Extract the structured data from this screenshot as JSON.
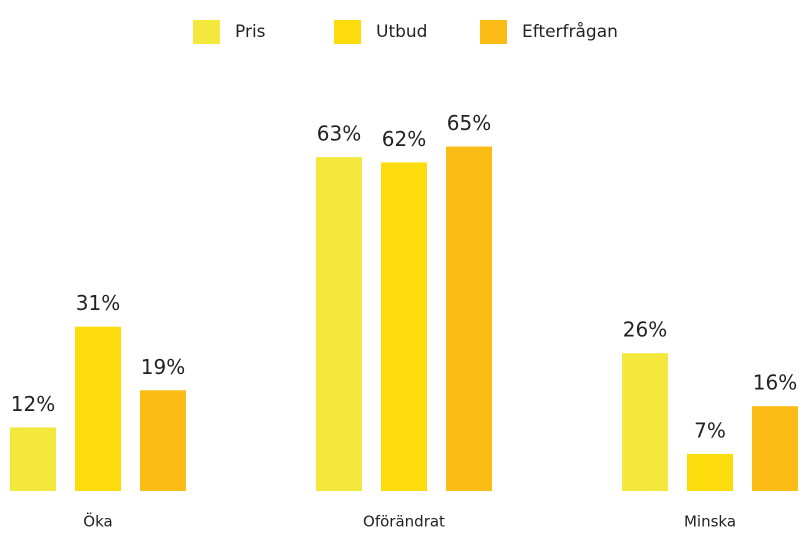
{
  "chart_data": {
    "type": "bar",
    "categories": [
      "Öka",
      "Oförändrat",
      "Minska"
    ],
    "series": [
      {
        "name": "Pris",
        "color": "#f5e83c",
        "values": [
          12,
          63,
          26
        ],
        "value_labels": [
          "12%",
          "63%",
          "26%"
        ]
      },
      {
        "name": "Utbud",
        "color": "#fcdc0c",
        "values": [
          31,
          62,
          7
        ],
        "value_labels": [
          "31%",
          "62%",
          "7%"
        ]
      },
      {
        "name": "Efterfrågan",
        "color": "#fbbc15",
        "values": [
          19,
          65,
          16
        ],
        "value_labels": [
          "19%",
          "65%",
          "16%"
        ]
      }
    ],
    "legend": "top"
  }
}
